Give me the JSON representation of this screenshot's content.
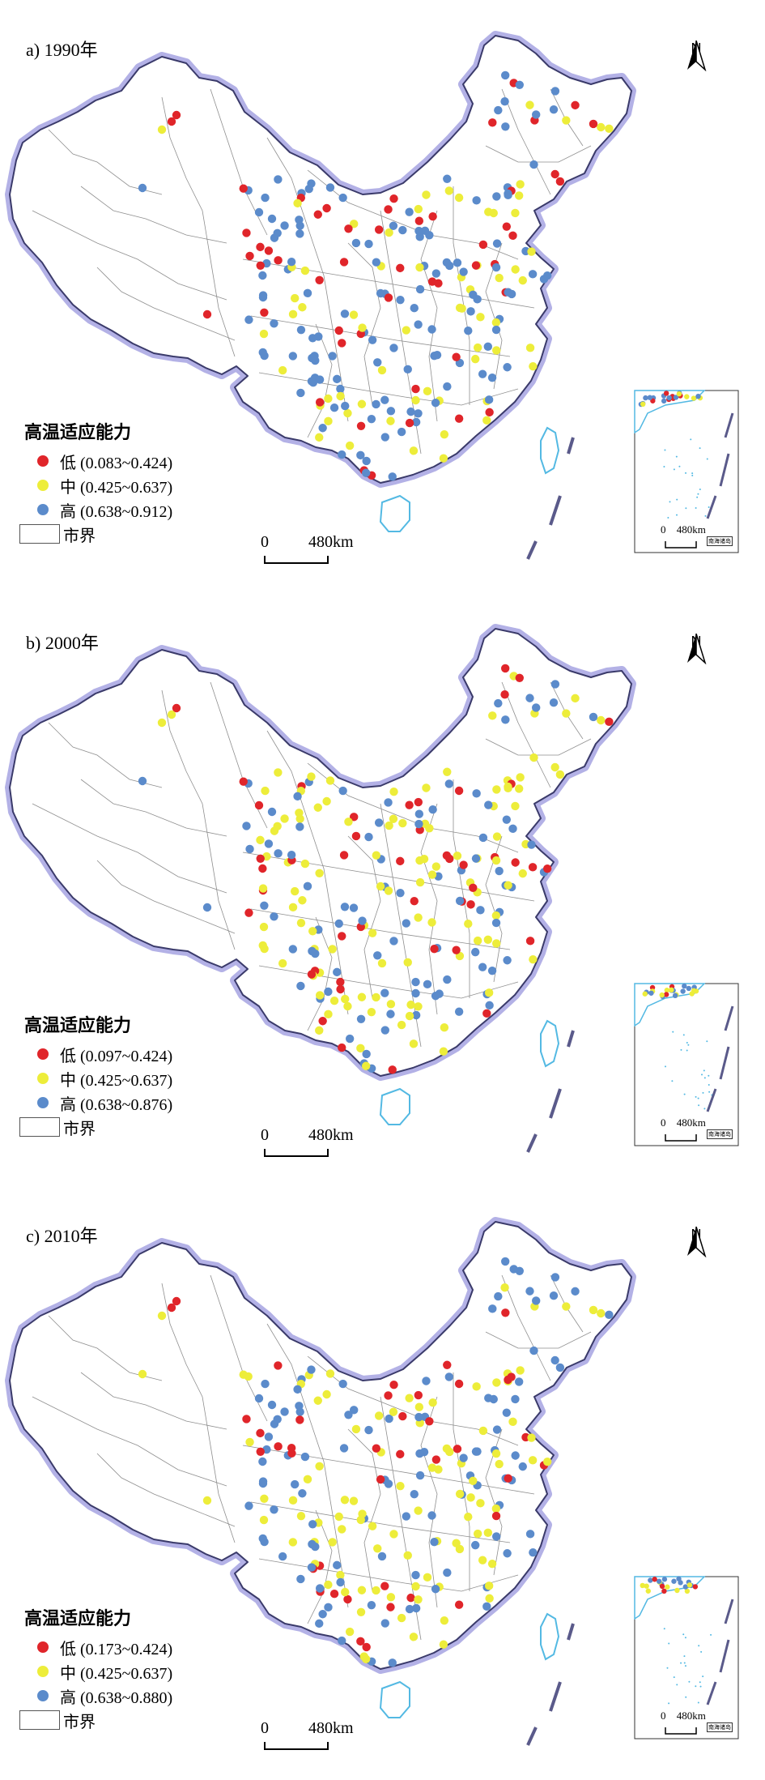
{
  "colors": {
    "low": "#e0252a",
    "mid": "#eded3a",
    "high": "#5b8bcb",
    "border_glow": "#b3b1e6",
    "border_line": "#3a3a6a",
    "city_line": "#8f8f8f",
    "coast": "#53b9e3"
  },
  "panels": [
    {
      "label": "a) 1990年",
      "legend": {
        "title": "高温适应能力",
        "low": "低 (0.083~0.424)",
        "mid": "中 (0.425~0.637)",
        "high": "高 (0.638~0.912)",
        "boundary": "市界"
      },
      "scale": {
        "zero": "0",
        "distance": "480km"
      },
      "north": "N",
      "inset": {
        "zero": "0",
        "distance": "480km",
        "note": "南海诸岛"
      },
      "low_share": 0.18,
      "mid_share": 0.22
    },
    {
      "label": "b) 2000年",
      "legend": {
        "title": "高温适应能力",
        "low": "低 (0.097~0.424)",
        "mid": "中 (0.425~0.637)",
        "high": "高 (0.638~0.876)",
        "boundary": "市界"
      },
      "scale": {
        "zero": "0",
        "distance": "480km"
      },
      "north": "N",
      "inset": {
        "zero": "0",
        "distance": "480km",
        "note": "南海诸岛"
      },
      "low_share": 0.2,
      "mid_share": 0.4
    },
    {
      "label": "c) 2010年",
      "legend": {
        "title": "高温适应能力",
        "low": "低 (0.173~0.424)",
        "mid": "中 (0.425~0.637)",
        "high": "高 (0.638~0.880)",
        "boundary": "市界"
      },
      "scale": {
        "zero": "0",
        "distance": "480km"
      },
      "north": "N",
      "inset": {
        "zero": "0",
        "distance": "480km",
        "note": "南海诸岛"
      },
      "low_share": 0.15,
      "mid_share": 0.45
    }
  ]
}
